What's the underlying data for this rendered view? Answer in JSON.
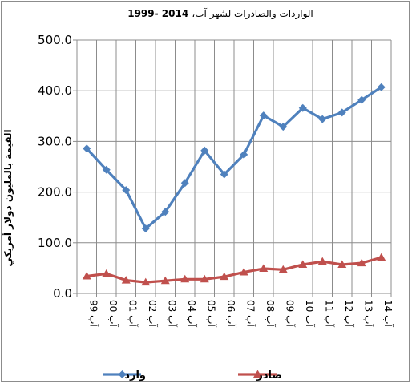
{
  "chart_data": {
    "type": "line",
    "title": "الواردات والصادرات لشهر آب، 1999- 2014",
    "title_ar": "الواردات والصادرات لشهر آب،",
    "title_years": "1999- 2014",
    "ylabel": "القيمة بالمليون دولار أمريكي",
    "xlabel": "",
    "ylim": [
      0,
      500
    ],
    "yticks": [
      "0.0",
      "100.0",
      "200.0",
      "300.0",
      "400.0",
      "500.0"
    ],
    "categories": [
      "آب 99",
      "آب 00",
      "آب 01",
      "آب 02",
      "آب 03",
      "آب 04",
      "آب 05",
      "آب 06",
      "آب 07",
      "آب 08",
      "آب 09",
      "آب 10",
      "آب 11",
      "آب 12",
      "آب 13",
      "آب 14"
    ],
    "grid": true,
    "legend": "bottom",
    "series": [
      {
        "name": "وارد",
        "color": "#4f81bd",
        "marker": "diamond",
        "values": [
          286,
          244,
          204,
          128,
          161,
          218,
          282,
          235,
          274,
          351,
          329,
          366,
          344,
          357,
          382,
          407
        ]
      },
      {
        "name": "صادر",
        "color": "#c0504d",
        "marker": "triangle",
        "values": [
          34,
          39,
          26,
          22,
          25,
          28,
          28,
          33,
          42,
          49,
          47,
          57,
          63,
          57,
          60,
          71
        ]
      }
    ]
  }
}
